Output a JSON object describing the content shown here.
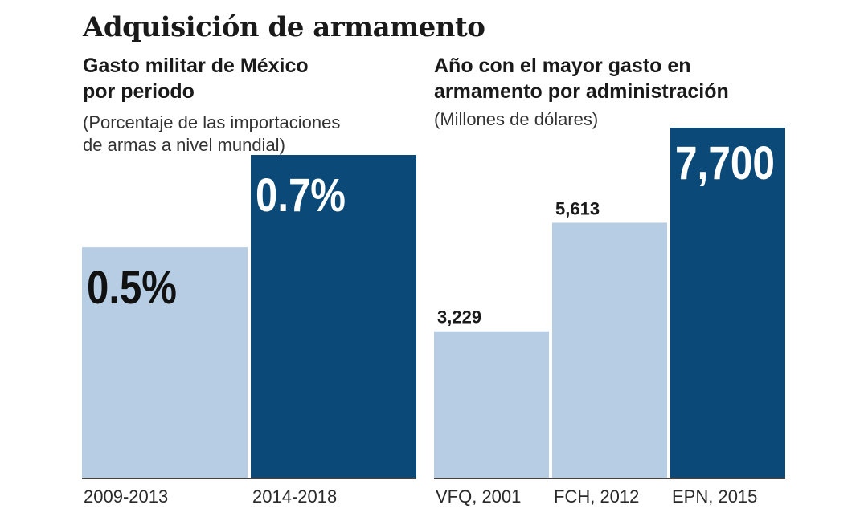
{
  "header": {
    "title": "Adquisición de armamento"
  },
  "left_panel": {
    "title_line1": "Gasto militar de México",
    "title_line2": "por periodo",
    "note_line1": "(Porcentaje de las importaciones",
    "note_line2": "de armas a nivel mundial)"
  },
  "right_panel": {
    "title_line1": "Año con el mayor gasto en",
    "title_line2": "armamento por administración",
    "note_line1": "(Millones de dólares)"
  },
  "colors": {
    "light_bar": "#b6cde3",
    "dark_bar": "#0b4a78",
    "baseline": "#444444"
  },
  "chart_data": [
    {
      "type": "bar",
      "title": "Gasto militar de México por periodo",
      "subtitle": "(Porcentaje de las importaciones de armas a nivel mundial)",
      "categories": [
        "2009-2013",
        "2014-2018"
      ],
      "values": [
        0.5,
        0.7
      ],
      "value_labels": [
        "0.5%",
        "0.7%"
      ],
      "highlight": [
        false,
        true
      ],
      "ylim": [
        0,
        0.7
      ]
    },
    {
      "type": "bar",
      "title": "Año con el mayor gasto en armamento por administración",
      "subtitle": "(Millones de dólares)",
      "categories": [
        "VFQ, 2001",
        "FCH, 2012",
        "EPN, 2015"
      ],
      "values": [
        3229,
        5613,
        7700
      ],
      "value_labels": [
        "3,229",
        "5,613",
        "7,700"
      ],
      "highlight": [
        false,
        false,
        true
      ],
      "ylim": [
        0,
        7700
      ]
    }
  ]
}
